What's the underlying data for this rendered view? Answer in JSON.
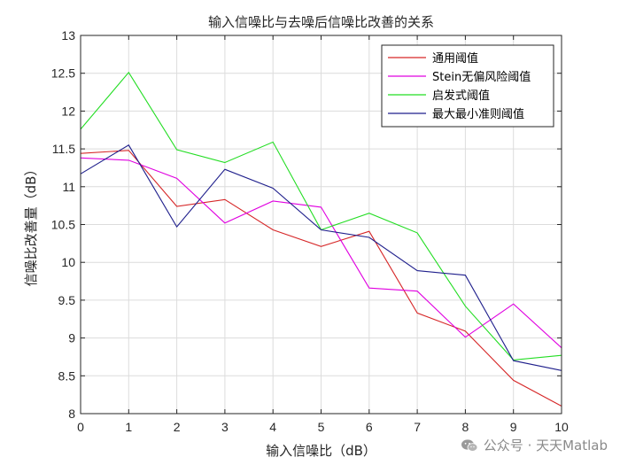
{
  "chart_data": {
    "type": "line",
    "title": "输入信噪比与去噪后信噪比改善的关系",
    "xlabel": "输入信噪比（dB）",
    "ylabel": "信噪比改善量（dB）",
    "xlim": [
      0,
      10
    ],
    "ylim": [
      8,
      13
    ],
    "x": [
      0,
      1,
      2,
      3,
      4,
      5,
      6,
      7,
      8,
      9,
      10
    ],
    "x_ticks": [
      "0",
      "1",
      "2",
      "3",
      "4",
      "5",
      "6",
      "7",
      "8",
      "9",
      "10"
    ],
    "y_ticks": [
      "8",
      "8.5",
      "9",
      "9.5",
      "10",
      "10.5",
      "11",
      "11.5",
      "12",
      "12.5",
      "13"
    ],
    "grid": true,
    "legend_position": "top-right",
    "series": [
      {
        "name": "通用阈值",
        "color": "#d62728",
        "values": [
          11.44,
          11.48,
          10.74,
          10.83,
          10.43,
          10.21,
          10.41,
          9.33,
          9.09,
          8.44,
          8.1
        ]
      },
      {
        "name": "Stein无偏风险阈值",
        "color": "#e000e0",
        "values": [
          11.38,
          11.35,
          11.11,
          10.52,
          10.81,
          10.73,
          9.66,
          9.62,
          9.01,
          9.45,
          8.87
        ]
      },
      {
        "name": "启发式阈值",
        "color": "#22dd22",
        "values": [
          11.76,
          12.51,
          11.49,
          11.32,
          11.59,
          10.43,
          10.65,
          10.39,
          9.42,
          8.71,
          8.77
        ]
      },
      {
        "name": "最大最小准则阈值",
        "color": "#1f1f8c",
        "values": [
          11.17,
          11.55,
          10.47,
          11.23,
          10.98,
          10.43,
          10.33,
          9.89,
          9.83,
          8.7,
          8.57
        ]
      }
    ]
  },
  "watermark": {
    "icon": "wechat-icon",
    "text": "公众号 · 天天Matlab"
  }
}
